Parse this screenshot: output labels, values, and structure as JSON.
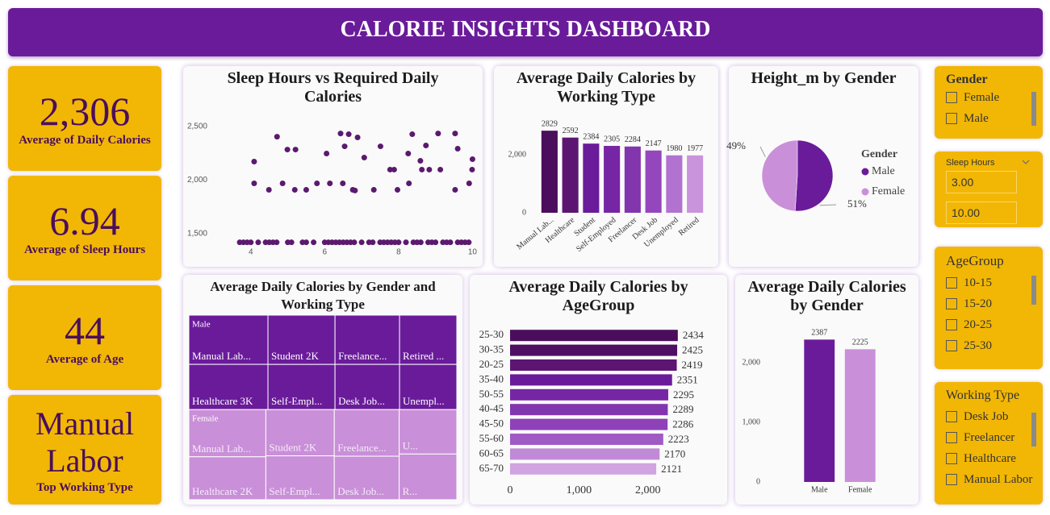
{
  "header": {
    "title": "CALORIE INSIGHTS DASHBOARD"
  },
  "kpis": [
    {
      "value": "2,306",
      "label": "Average of Daily Calories"
    },
    {
      "value": "6.94",
      "label": "Average of Sleep Hours"
    },
    {
      "value": "44",
      "label": "Average of Age"
    },
    {
      "value": "Manual Labor",
      "label": "Top Working Type"
    }
  ],
  "chart_data": [
    {
      "type": "scatter",
      "title": "Sleep Hours vs Required Daily Calories",
      "series": [
        {
          "color": "#5b1a6e",
          "x": [
            4.09,
            4.09,
            4.49,
            4.71,
            4.86,
            4.99,
            5.21,
            5.19,
            5.5,
            5.79,
            6.05,
            6.14,
            6.43,
            6.49,
            6.54,
            6.65,
            6.76,
            6.82,
            6.89,
            7.07,
            7.33,
            7.51,
            7.77,
            7.88,
            7.97,
            8.26,
            8.28,
            8.37,
            8.59,
            8.63,
            8.74,
            8.83,
            9.07,
            9.13,
            9.53,
            9.53,
            9.6,
            9.91,
            9.99,
            10.0,
            3.7,
            3.8,
            3.9,
            4.0,
            4.2,
            4.4,
            4.5,
            4.6,
            4.7,
            5.0,
            5.1,
            5.4,
            5.5,
            5.7,
            6.0,
            6.1,
            6.2,
            6.3,
            6.4,
            6.5,
            6.6,
            6.7,
            6.8,
            7.0,
            7.2,
            7.3,
            7.5,
            7.6,
            7.7,
            7.8,
            7.9,
            8.0,
            8.2,
            8.4,
            8.5,
            8.6,
            8.8,
            8.9,
            9.0,
            9.2,
            9.3,
            9.4,
            9.6,
            9.7,
            9.8,
            9.9
          ],
          "values": [
            2173,
            1970,
            1910,
            2405,
            1970,
            2285,
            2285,
            1910,
            1910,
            1970,
            2248,
            1970,
            2435,
            1970,
            2315,
            2428,
            1910,
            1903,
            2398,
            2210,
            1910,
            2315,
            2098,
            2098,
            1910,
            2248,
            1970,
            2428,
            2180,
            2098,
            2323,
            2098,
            2435,
            2098,
            2435,
            1910,
            2293,
            1970,
            2098,
            2195,
            1420,
            1420,
            1420,
            1420,
            1420,
            1420,
            1420,
            1420,
            1420,
            1420,
            1420,
            1420,
            1420,
            1420,
            1420,
            1420,
            1420,
            1420,
            1420,
            1420,
            1420,
            1420,
            1420,
            1420,
            1420,
            1420,
            1420,
            1420,
            1420,
            1420,
            1420,
            1420,
            1420,
            1420,
            1420,
            1420,
            1420,
            1420,
            1420,
            1420,
            1420,
            1420,
            1420,
            1420,
            1420,
            1420
          ]
        }
      ],
      "xlim": [
        3,
        10.1
      ],
      "ylim": [
        1350,
        2650
      ],
      "xticks": [
        4,
        6,
        8,
        10
      ],
      "yticks": [
        {
          "value": 1500,
          "label": "1,500"
        },
        {
          "value": 2000,
          "label": "2,000"
        },
        {
          "value": 2500,
          "label": "2,500"
        }
      ]
    },
    {
      "type": "bar",
      "title": "Average Daily Calories by Working Type",
      "categories": [
        "Manual Lab...",
        "Healthcare",
        "Student",
        "Self-Employed",
        "Freelancer",
        "Desk Job",
        "Unemployed",
        "Retired"
      ],
      "values": [
        2829,
        2592,
        2384,
        2305,
        2284,
        2147,
        1980,
        1977
      ],
      "colors": [
        "#4a0e5c",
        "#5c1672",
        "#6a1b9a",
        "#7626a5",
        "#8236ae",
        "#9447bc",
        "#b272d0",
        "#c994dc"
      ],
      "ylim": [
        0,
        3000
      ],
      "yticks": [
        0,
        {
          "value": 2000,
          "label": "2,000"
        }
      ]
    },
    {
      "type": "pie",
      "title": "Height_m by Gender",
      "legend_title": "Gender",
      "categories": [
        "Male",
        "Female"
      ],
      "values": [
        51,
        49
      ],
      "value_labels": [
        "51%",
        "49%"
      ],
      "colors": [
        "#6a1b9a",
        "#c990d9"
      ]
    },
    {
      "type": "treemap",
      "title": "Average Daily Calories by Gender and Working Type",
      "groups": [
        {
          "name": "Male",
          "color": "#6a1b9a",
          "tiles": [
            {
              "label": "Manual Lab...",
              "value": 2830
            },
            {
              "label": "Healthcare 3K",
              "value": 2600
            },
            {
              "label": "Student 2K",
              "value": 2400
            },
            {
              "label": "Self-Empl...",
              "value": 2200
            },
            {
              "label": "Freelance...",
              "value": 2310
            },
            {
              "label": "Desk Job...",
              "value": 2120
            },
            {
              "label": "Retired ...",
              "value": 2050
            },
            {
              "label": "Unempl...",
              "value": 1880
            }
          ]
        },
        {
          "name": "Female",
          "color": "#c98fd8",
          "tiles": [
            {
              "label": "Manual Lab...",
              "value": 2640
            },
            {
              "label": "Healthcare 2K",
              "value": 2400
            },
            {
              "label": "Student 2K",
              "value": 2300
            },
            {
              "label": "Self-Empl...",
              "value": 2180
            },
            {
              "label": "Freelance...",
              "value": 2200
            },
            {
              "label": "Desk Job...",
              "value": 2050
            },
            {
              "label": "U...",
              "value": 1860
            },
            {
              "label": "R...",
              "value": 1910
            }
          ]
        }
      ]
    },
    {
      "type": "hbar",
      "title": "Average Daily Calories by AgeGroup",
      "categories": [
        "25-30",
        "30-35",
        "20-25",
        "35-40",
        "50-55",
        "40-45",
        "45-50",
        "55-60",
        "60-65",
        "65-70"
      ],
      "values": [
        2434,
        2425,
        2419,
        2351,
        2295,
        2289,
        2286,
        2223,
        2170,
        2121
      ],
      "colors": [
        "#4a0e5c",
        "#4f1063",
        "#5c1672",
        "#6a1b9a",
        "#7626a5",
        "#8236ae",
        "#8f42b7",
        "#a05ac4",
        "#c18ad6",
        "#d1a3e1"
      ],
      "xlim": [
        0,
        2600
      ],
      "xticks": [
        0,
        {
          "value": 1000,
          "label": "1,000"
        },
        {
          "value": 2000,
          "label": "2,000"
        }
      ]
    },
    {
      "type": "bar",
      "title": "Average Daily Calories by Gender",
      "categories": [
        "Male",
        "Female"
      ],
      "values": [
        2387,
        2225
      ],
      "colors": [
        "#6a1b9a",
        "#c990d9"
      ],
      "ylim": [
        0,
        2600
      ],
      "yticks": [
        0,
        {
          "value": 1000,
          "label": "1,000"
        },
        {
          "value": 2000,
          "label": "2,000"
        }
      ]
    }
  ],
  "slicers": {
    "gender": {
      "title": "Gender",
      "options": [
        "Female",
        "Male"
      ]
    },
    "sleep_hours": {
      "title": "Sleep Hours",
      "min": "3.00",
      "max": "10.00"
    },
    "age_group": {
      "title": "AgeGroup",
      "options": [
        "10-15",
        "15-20",
        "20-25",
        "25-30"
      ]
    },
    "working_type": {
      "title": "Working Type",
      "options": [
        "Desk Job",
        "Freelancer",
        "Healthcare",
        "Manual Labor"
      ]
    }
  }
}
